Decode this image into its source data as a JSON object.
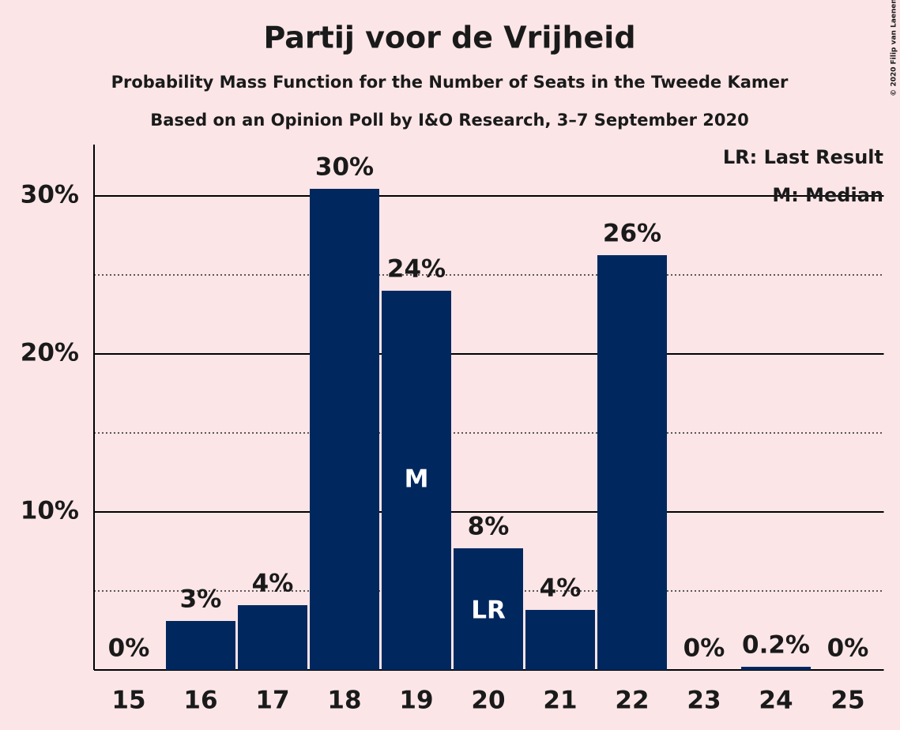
{
  "chart_data": {
    "type": "bar",
    "title": "Partij voor de Vrijheid",
    "subtitle": "Probability Mass Function for the Number of Seats in the Tweede Kamer",
    "subtitle2": "Based on an Opinion Poll by I&O Research, 3–7 September 2020",
    "copyright": "© 2020 Filip van Laenen",
    "categories": [
      "15",
      "16",
      "17",
      "18",
      "19",
      "20",
      "21",
      "22",
      "23",
      "24",
      "25"
    ],
    "values": [
      0,
      3.1,
      4.1,
      30.45,
      24.0,
      7.7,
      3.8,
      26.25,
      0,
      0.2,
      0
    ],
    "value_labels": [
      "0%",
      "3%",
      "4%",
      "30%",
      "24%",
      "8%",
      "4%",
      "26%",
      "0%",
      "0.2%",
      "0%"
    ],
    "color": "#00285e",
    "ylim": [
      0,
      33.25
    ],
    "yticks": [
      {
        "value": 10,
        "label": "10%"
      },
      {
        "value": 20,
        "label": "20%"
      },
      {
        "value": 30,
        "label": "30%"
      }
    ],
    "minor_yticks": [
      5,
      15,
      25
    ],
    "grid": true,
    "annotations": [
      {
        "text": "M",
        "category": "19"
      },
      {
        "text": "LR",
        "category": "20"
      }
    ],
    "legend": [
      "LR: Last Result",
      "M: Median"
    ],
    "legend_position": "upper right"
  }
}
